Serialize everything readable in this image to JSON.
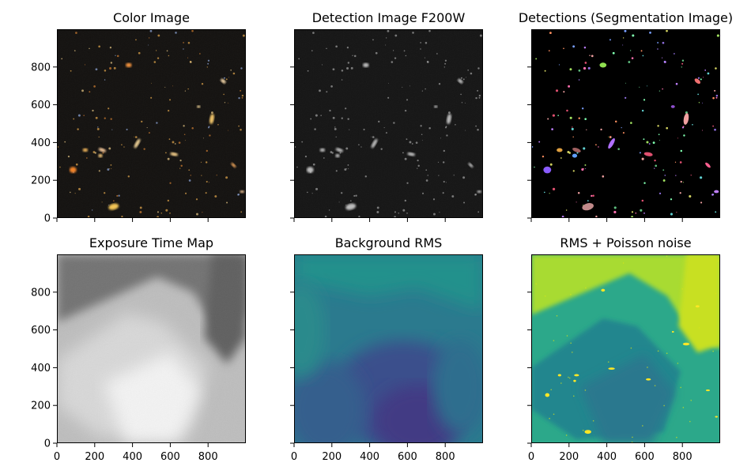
{
  "figure": {
    "panels": [
      {
        "title": "Color Image",
        "kind": "color",
        "show_y_labels": true,
        "show_x_labels": false
      },
      {
        "title": "Detection Image F200W",
        "kind": "detection",
        "show_y_labels": false,
        "show_x_labels": false
      },
      {
        "title": "Detections (Segmentation Image)",
        "kind": "segmentation",
        "show_y_labels": false,
        "show_x_labels": false
      },
      {
        "title": "Exposure Time Map",
        "kind": "exposure",
        "show_y_labels": true,
        "show_x_labels": true
      },
      {
        "title": "Background RMS",
        "kind": "bgrms",
        "show_y_labels": false,
        "show_x_labels": true
      },
      {
        "title": "RMS + Poisson noise",
        "kind": "rmspoisson",
        "show_y_labels": false,
        "show_x_labels": true
      }
    ]
  },
  "chart_data": {
    "type": "heatmap",
    "layout": "2x3 image grid, shared axes",
    "xlim": [
      0,
      1000
    ],
    "ylim": [
      0,
      1000
    ],
    "x_ticks": [
      0,
      200,
      400,
      600,
      800
    ],
    "y_ticks": [
      0,
      200,
      400,
      600,
      800
    ],
    "x_tick_labels": [
      "0",
      "200",
      "400",
      "600",
      "800"
    ],
    "y_tick_labels": [
      "0",
      "200",
      "400",
      "600",
      "800"
    ],
    "bright_sources": [
      {
        "x": 300,
        "y": 60,
        "color": "#ffcf5a",
        "seg_color": "#c08a8a",
        "rx": 12,
        "ry": 7,
        "rot": -15
      },
      {
        "x": 85,
        "y": 255,
        "color": "#ff8a2a",
        "seg_color": "#8a5cff",
        "rx": 8,
        "ry": 7,
        "rot": 0
      },
      {
        "x": 425,
        "y": 395,
        "color": "#ffe0a0",
        "seg_color": "#b070ff",
        "rx": 12,
        "ry": 4,
        "rot": -60
      },
      {
        "x": 820,
        "y": 525,
        "color": "#ffd070",
        "seg_color": "#f0a0a0",
        "rx": 12,
        "ry": 5,
        "rot": -80
      },
      {
        "x": 380,
        "y": 810,
        "color": "#ff9a40",
        "seg_color": "#90e050",
        "rx": 7,
        "ry": 5,
        "rot": 0
      },
      {
        "x": 620,
        "y": 338,
        "color": "#ffd890",
        "seg_color": "#e05070",
        "rx": 9,
        "ry": 4,
        "rot": 10
      },
      {
        "x": 240,
        "y": 360,
        "color": "#ffd0a0",
        "seg_color": "#a06060",
        "rx": 9,
        "ry": 4,
        "rot": 20
      },
      {
        "x": 880,
        "y": 725,
        "color": "#ffe0b0",
        "seg_color": "#f07070",
        "rx": 7,
        "ry": 4,
        "rot": 40
      },
      {
        "x": 935,
        "y": 280,
        "color": "#ffb060",
        "seg_color": "#ff6090",
        "rx": 7,
        "ry": 3,
        "rot": 45
      },
      {
        "x": 150,
        "y": 360,
        "color": "#ffc060",
        "seg_color": "#e0a040",
        "rx": 6,
        "ry": 4,
        "rot": 0
      },
      {
        "x": 230,
        "y": 330,
        "color": "#ffd080",
        "seg_color": "#60a0ff",
        "rx": 5,
        "ry": 4,
        "rot": 0
      },
      {
        "x": 750,
        "y": 590,
        "color": "#ffe0a0",
        "seg_color": "#9050d0",
        "rx": 4,
        "ry": 3,
        "rot": 0
      },
      {
        "x": 980,
        "y": 140,
        "color": "#ffd0a0",
        "seg_color": "#c080ff",
        "rx": 5,
        "ry": 3,
        "rot": 0
      }
    ]
  }
}
